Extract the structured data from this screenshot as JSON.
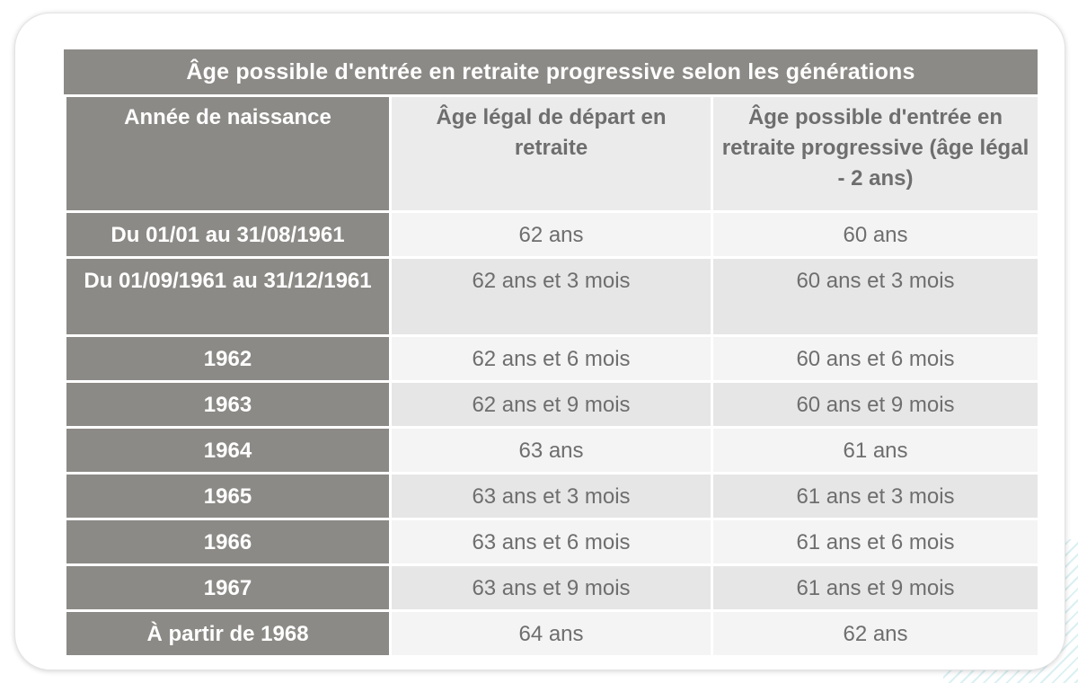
{
  "title": "Âge possible d'entrée en retraite progressive selon les générations",
  "headers": [
    "Année de naissance",
    "Âge légal de départ en retraite",
    "Âge possible d'entrée en retraite progressive (âge légal - 2 ans)"
  ],
  "rows": [
    {
      "birth": "Du 01/01 au 31/08/1961",
      "legal": "62 ans",
      "progressive": "60 ans"
    },
    {
      "birth": "Du 01/09/1961 au 31/12/1961",
      "legal": "62 ans et 3 mois",
      "progressive": "60 ans et 3 mois"
    },
    {
      "birth": "1962",
      "legal": "62 ans et 6 mois",
      "progressive": "60 ans et 6 mois"
    },
    {
      "birth": "1963",
      "legal": "62 ans et 9 mois",
      "progressive": "60 ans et 9 mois"
    },
    {
      "birth": "1964",
      "legal": "63 ans",
      "progressive": "61 ans"
    },
    {
      "birth": "1965",
      "legal": "63 ans et 3 mois",
      "progressive": "61 ans et 3 mois"
    },
    {
      "birth": "1966",
      "legal": "63 ans et 6 mois",
      "progressive": "61 ans et 6 mois"
    },
    {
      "birth": "1967",
      "legal": "63 ans et 9 mois",
      "progressive": "61 ans et 9 mois"
    },
    {
      "birth": "À partir de 1968",
      "legal": "64 ans",
      "progressive": "62 ans"
    }
  ],
  "colors": {
    "dark_cell": "#8c8a86",
    "light_header": "#ebebeb",
    "row_light": "#f4f4f4",
    "row_dark": "#e6e6e6",
    "text_gray": "#6e6e6e",
    "stripe": "#d6eef1"
  }
}
